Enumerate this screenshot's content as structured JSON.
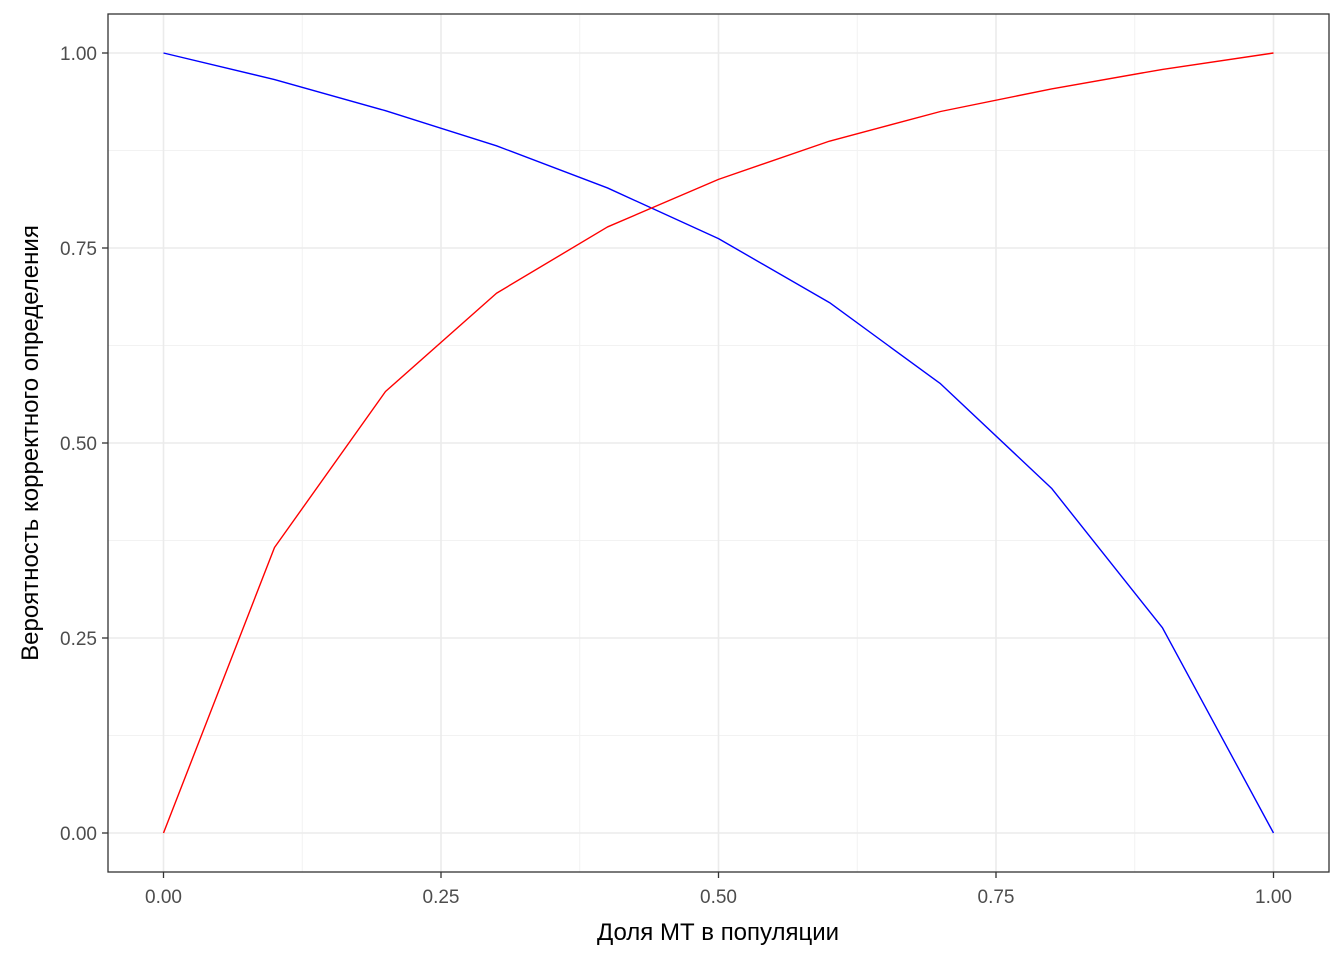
{
  "chart_data": {
    "type": "line",
    "title": "",
    "xlabel": "Доля МТ в популяции",
    "ylabel": "Вероятность корректного определения",
    "xlim": [
      -0.05,
      1.05
    ],
    "ylim": [
      -0.05,
      1.05
    ],
    "x_ticks": [
      0.0,
      0.25,
      0.5,
      0.75,
      1.0
    ],
    "x_tick_labels": [
      "0.00",
      "0.25",
      "0.50",
      "0.75",
      "1.00"
    ],
    "y_ticks": [
      0.0,
      0.25,
      0.5,
      0.75,
      1.0
    ],
    "y_tick_labels": [
      "0.00",
      "0.25",
      "0.50",
      "0.75",
      "1.00"
    ],
    "grid": true,
    "legend": "none",
    "x": [
      0.0,
      0.1,
      0.2,
      0.3,
      0.4,
      0.5,
      0.6,
      0.7,
      0.8,
      0.9,
      1.0
    ],
    "series": [
      {
        "color": "#0000ff",
        "values": [
          1.0,
          0.966,
          0.926,
          0.881,
          0.827,
          0.762,
          0.68,
          0.576,
          0.442,
          0.263,
          0.0
        ]
      },
      {
        "color": "#ff0000",
        "values": [
          0.0,
          0.366,
          0.566,
          0.692,
          0.777,
          0.838,
          0.887,
          0.925,
          0.954,
          0.979,
          1.0
        ]
      }
    ]
  }
}
